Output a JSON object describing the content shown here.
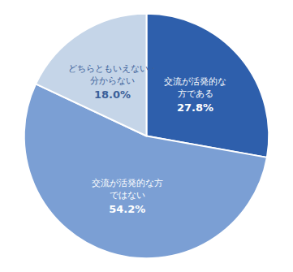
{
  "chart_data": {
    "type": "pie",
    "categories": [
      "交流が活発的な\n方である",
      "交流が活発的な方\nではない",
      "どちらともいえない・\n分からない"
    ],
    "values": [
      27.8,
      54.2,
      18.0
    ],
    "value_labels": [
      "27.8%",
      "54.2%",
      "18.0%"
    ],
    "colors": [
      "#2E5FAC",
      "#7B9FD4",
      "#C5D5E8"
    ],
    "data_labels": true
  }
}
